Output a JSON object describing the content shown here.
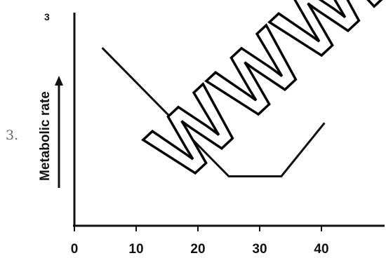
{
  "corner_label": "3",
  "side_label": "3.",
  "watermark": "WWW.",
  "chart_data": {
    "type": "line",
    "title": "",
    "xlabel": "",
    "ylabel": "Metabolic rate",
    "ylabel_arrow": true,
    "xlim": [
      0,
      50
    ],
    "x_ticks": [
      0,
      10,
      20,
      30,
      40
    ],
    "y_ticks": [],
    "grid": false,
    "legend": "none",
    "line_color": "#111111",
    "series": [
      {
        "x": [
          4.5,
          25,
          33.5,
          40.5
        ],
        "y": [
          0.9,
          0.25,
          0.25,
          0.52
        ]
      }
    ]
  }
}
